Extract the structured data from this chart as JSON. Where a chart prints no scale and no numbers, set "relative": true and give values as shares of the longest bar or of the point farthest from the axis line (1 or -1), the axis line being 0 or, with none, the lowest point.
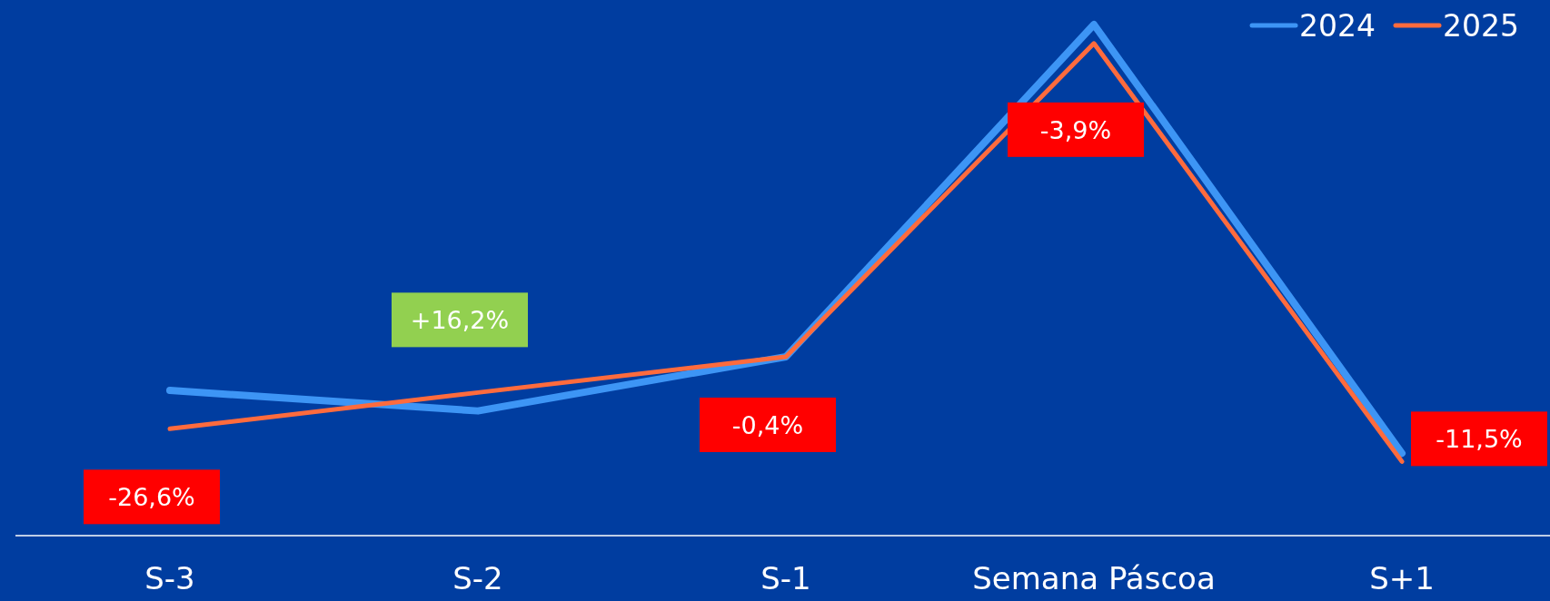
{
  "chart_data": {
    "type": "line",
    "relative": true,
    "categories": [
      "S-3",
      "S-2",
      "S-1",
      "Semana Páscoa",
      "S+1"
    ],
    "series": [
      {
        "name": "2024",
        "color": "#3d95f5",
        "values": [
          0.284,
          0.244,
          0.35,
          1,
          0.161
        ]
      },
      {
        "name": "2025",
        "color": "#ff6b3d",
        "values": [
          0.209,
          0.28,
          0.35,
          0.963,
          0.145
        ]
      }
    ],
    "annotations": [
      {
        "text": "-26,6%",
        "x": "S-3",
        "y": 0.209
      },
      {
        "text": "+16,2%",
        "x": "S-2",
        "y": 0.28
      },
      {
        "text": "-0,4%",
        "x": "S-1",
        "y": 0.35
      },
      {
        "text": "-3,9%",
        "x": "Semana Páscoa",
        "y": 0.963
      },
      {
        "text": "-11,5%",
        "x": "S+1",
        "y": 0.145
      }
    ],
    "legend": "top right",
    "marker": "none",
    "line_style": "solid"
  }
}
